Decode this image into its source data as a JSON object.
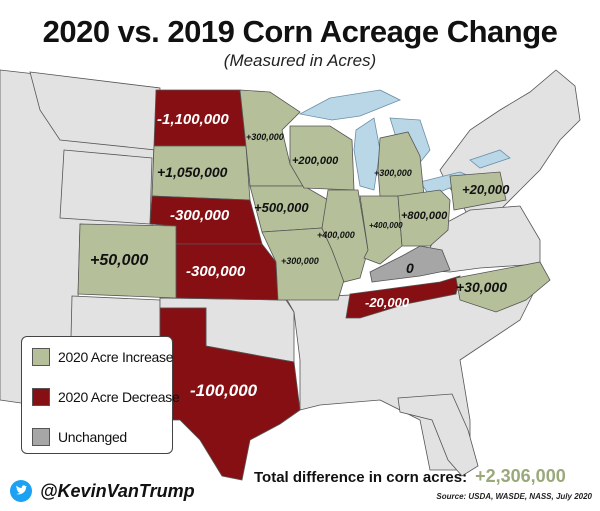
{
  "title": "2020 vs. 2019 Corn Acreage Change",
  "subtitle": "(Measured in Acres)",
  "colors": {
    "increase": "#b5c09b",
    "decrease": "#850f12",
    "unchanged": "#a6a6a6",
    "other": "#e2e2e2",
    "border": "#555555",
    "water": "#b9d7e6"
  },
  "legend": {
    "increase_label": "2020 Acre Increase",
    "decrease_label": "2020 Acre Decrease",
    "unchanged_label": "Unchanged"
  },
  "states": {
    "north_dakota": "-1,100,000",
    "minnesota": "+300,000",
    "south_dakota": "+1,050,000",
    "wisconsin": "+200,000",
    "michigan": "+300,000",
    "nebraska": "-300,000",
    "iowa": "+500,000",
    "illinois": "+400,000",
    "indiana": "+400,000",
    "ohio": "+800,000",
    "pennsylvania": "+20,000",
    "colorado": "+50,000",
    "kansas": "-300,000",
    "missouri": "+300,000",
    "kentucky": "0",
    "tennessee": "-20,000",
    "north_carolina": "+30,000",
    "texas": "-100,000"
  },
  "twitter_handle": "@KevinVanTrump",
  "twitter_icon": "twitter-bird-icon",
  "total_label": "Total difference in corn acres:",
  "total_value": "+2,306,000",
  "source": "Source: USDA, WASDE, NASS, July 2020"
}
